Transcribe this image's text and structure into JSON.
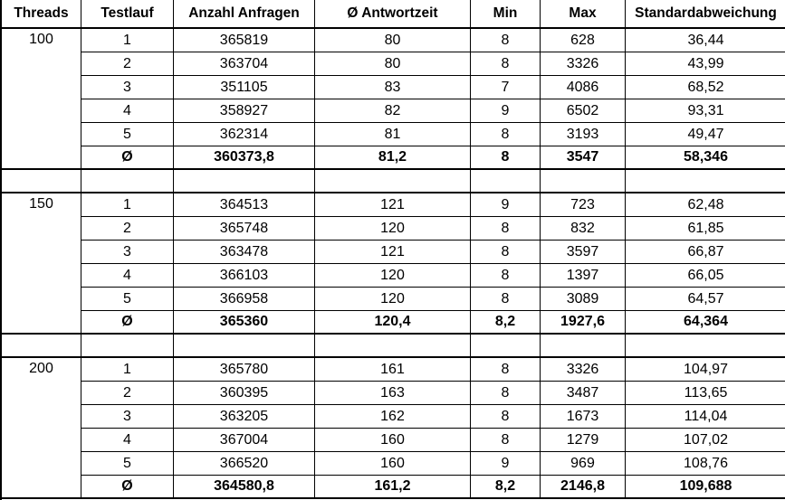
{
  "headers": [
    "Threads",
    "Testlauf",
    "Anzahl Anfragen",
    "Ø Antwortzeit",
    "Min",
    "Max",
    "Standardabweichung"
  ],
  "groups": [
    {
      "threads": "100",
      "runs": [
        [
          "1",
          "365819",
          "80",
          "8",
          "628",
          "36,44"
        ],
        [
          "2",
          "363704",
          "80",
          "8",
          "3326",
          "43,99"
        ],
        [
          "3",
          "351105",
          "83",
          "7",
          "4086",
          "68,52"
        ],
        [
          "4",
          "358927",
          "82",
          "9",
          "6502",
          "93,31"
        ],
        [
          "5",
          "362314",
          "81",
          "8",
          "3193",
          "49,47"
        ]
      ],
      "avg": [
        "Ø",
        "360373,8",
        "81,2",
        "8",
        "3547",
        "58,346"
      ]
    },
    {
      "threads": "150",
      "runs": [
        [
          "1",
          "364513",
          "121",
          "9",
          "723",
          "62,48"
        ],
        [
          "2",
          "365748",
          "120",
          "8",
          "832",
          "61,85"
        ],
        [
          "3",
          "363478",
          "121",
          "8",
          "3597",
          "66,87"
        ],
        [
          "4",
          "366103",
          "120",
          "8",
          "1397",
          "66,05"
        ],
        [
          "5",
          "366958",
          "120",
          "8",
          "3089",
          "64,57"
        ]
      ],
      "avg": [
        "Ø",
        "365360",
        "120,4",
        "8,2",
        "1927,6",
        "64,364"
      ]
    },
    {
      "threads": "200",
      "runs": [
        [
          "1",
          "365780",
          "161",
          "8",
          "3326",
          "104,97"
        ],
        [
          "2",
          "360395",
          "163",
          "8",
          "3487",
          "113,65"
        ],
        [
          "3",
          "363205",
          "162",
          "8",
          "1673",
          "114,04"
        ],
        [
          "4",
          "367004",
          "160",
          "8",
          "1279",
          "107,02"
        ],
        [
          "5",
          "366520",
          "160",
          "9",
          "969",
          "108,76"
        ]
      ],
      "avg": [
        "Ø",
        "364580,8",
        "161,2",
        "8,2",
        "2146,8",
        "109,688"
      ]
    }
  ]
}
